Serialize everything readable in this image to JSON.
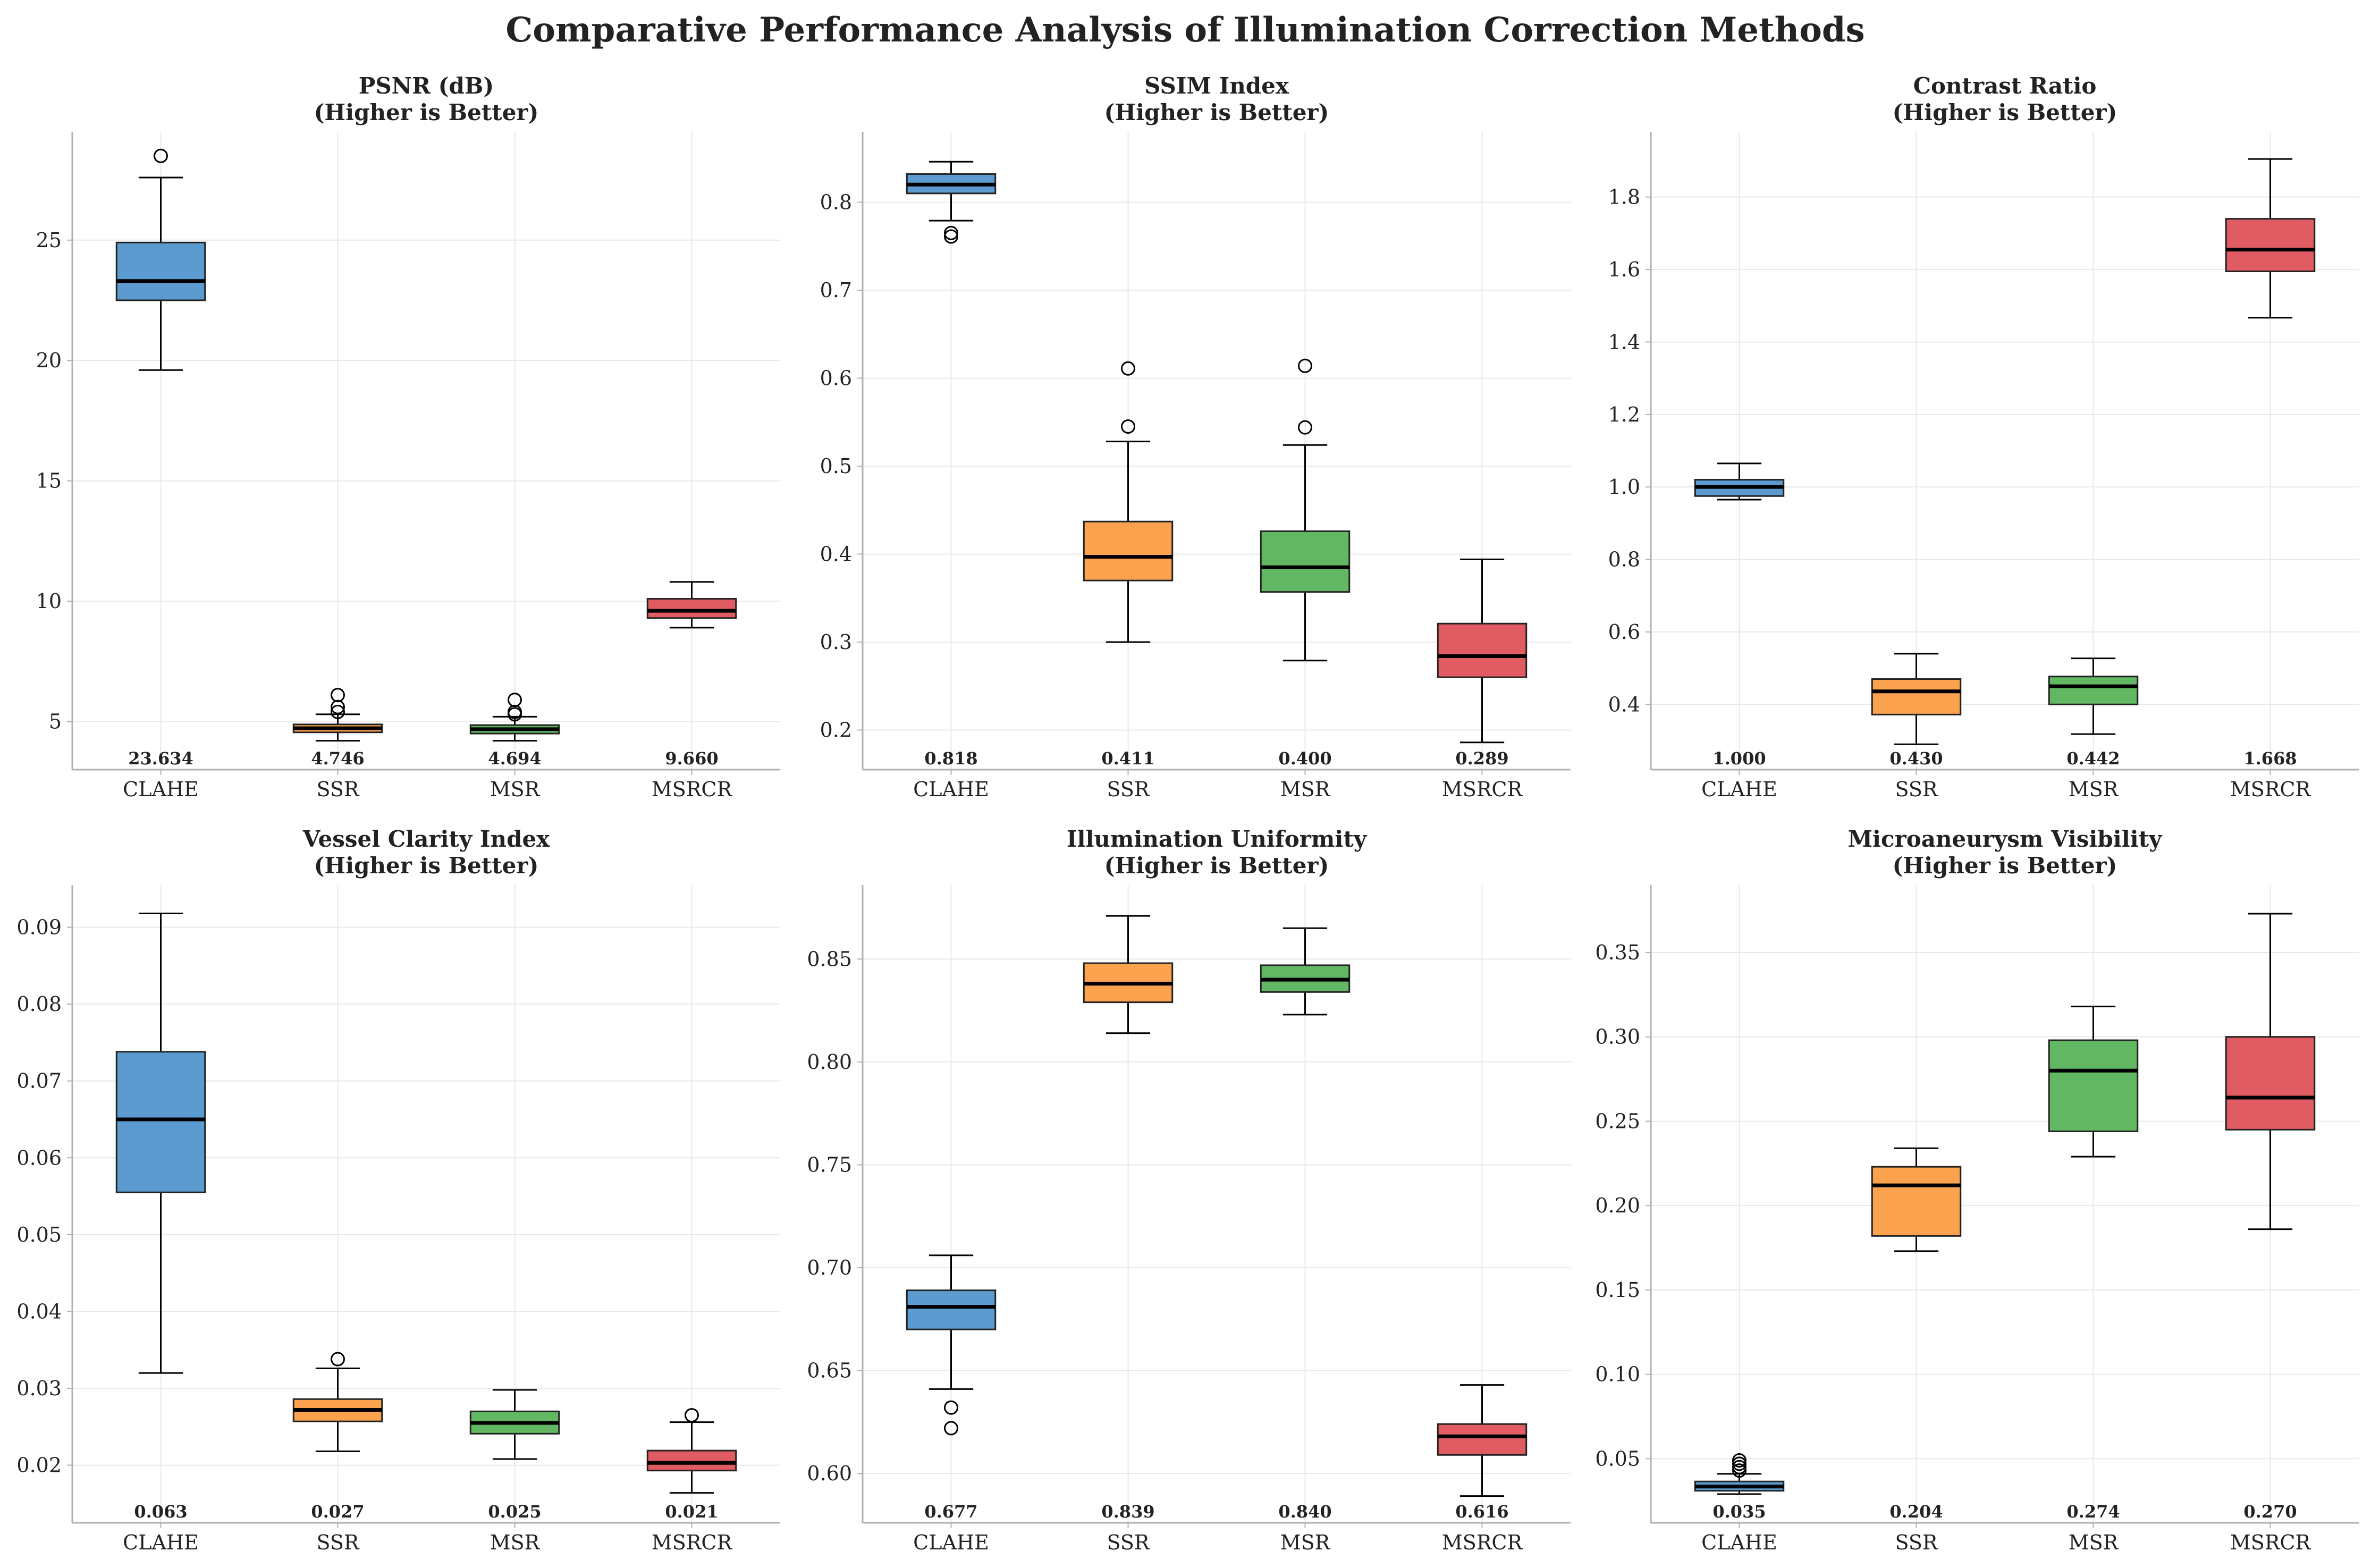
{
  "suptitle": "Comparative Performance Analysis of Illumination Correction Methods",
  "colors": {
    "CLAHE": "#5b9bd0",
    "SSR": "#fba24e",
    "MSR": "#62b862",
    "MSRCR": "#e05c62",
    "grid": "#e8e8e8",
    "axis": "#b0b0b0"
  },
  "chart_data": [
    {
      "type": "box",
      "title": "PSNR (dB)",
      "subtitle": "(Higher is Better)",
      "categories": [
        "CLAHE",
        "SSR",
        "MSR",
        "MSRCR"
      ],
      "ylim": [
        3.0,
        29.5
      ],
      "yticks": [
        5,
        10,
        15,
        20,
        25
      ],
      "ytick_labels": [
        "5",
        "10",
        "15",
        "20",
        "25"
      ],
      "grid": true,
      "series": [
        {
          "category": "CLAHE",
          "q1": 22.5,
          "median": 23.3,
          "q3": 24.9,
          "whisker_low": 19.6,
          "whisker_high": 27.6,
          "outliers": [
            28.5
          ],
          "mean_label": "23.634"
        },
        {
          "category": "SSR",
          "q1": 4.55,
          "median": 4.72,
          "q3": 4.88,
          "whisker_low": 4.2,
          "whisker_high": 5.3,
          "outliers": [
            5.4,
            5.6,
            6.1
          ],
          "mean_label": "4.746"
        },
        {
          "category": "MSR",
          "q1": 4.5,
          "median": 4.68,
          "q3": 4.85,
          "whisker_low": 4.2,
          "whisker_high": 5.2,
          "outliers": [
            5.3,
            5.4,
            5.9
          ],
          "mean_label": "4.694"
        },
        {
          "category": "MSRCR",
          "q1": 9.3,
          "median": 9.6,
          "q3": 10.1,
          "whisker_low": 8.9,
          "whisker_high": 10.8,
          "outliers": [],
          "mean_label": "9.660"
        }
      ]
    },
    {
      "type": "box",
      "title": "SSIM Index",
      "subtitle": "(Higher is Better)",
      "categories": [
        "CLAHE",
        "SSR",
        "MSR",
        "MSRCR"
      ],
      "ylim": [
        0.155,
        0.88
      ],
      "yticks": [
        0.2,
        0.3,
        0.4,
        0.5,
        0.6,
        0.7,
        0.8
      ],
      "ytick_labels": [
        "0.2",
        "0.3",
        "0.4",
        "0.5",
        "0.6",
        "0.7",
        "0.8"
      ],
      "grid": true,
      "series": [
        {
          "category": "CLAHE",
          "q1": 0.81,
          "median": 0.82,
          "q3": 0.832,
          "whisker_low": 0.779,
          "whisker_high": 0.846,
          "outliers": [
            0.765,
            0.761
          ],
          "mean_label": "0.818"
        },
        {
          "category": "SSR",
          "q1": 0.37,
          "median": 0.397,
          "q3": 0.437,
          "whisker_low": 0.3,
          "whisker_high": 0.528,
          "outliers": [
            0.545,
            0.611
          ],
          "mean_label": "0.411"
        },
        {
          "category": "MSR",
          "q1": 0.357,
          "median": 0.385,
          "q3": 0.426,
          "whisker_low": 0.279,
          "whisker_high": 0.524,
          "outliers": [
            0.544,
            0.614
          ],
          "mean_label": "0.400"
        },
        {
          "category": "MSRCR",
          "q1": 0.26,
          "median": 0.284,
          "q3": 0.321,
          "whisker_low": 0.186,
          "whisker_high": 0.394,
          "outliers": [],
          "mean_label": "0.289"
        }
      ]
    },
    {
      "type": "box",
      "title": "Contrast Ratio",
      "subtitle": "(Higher is Better)",
      "categories": [
        "CLAHE",
        "SSR",
        "MSR",
        "MSRCR"
      ],
      "ylim": [
        0.22,
        1.98
      ],
      "yticks": [
        0.4,
        0.6,
        0.8,
        1.0,
        1.2,
        1.4,
        1.6,
        1.8
      ],
      "ytick_labels": [
        "0.4",
        "0.6",
        "0.8",
        "1.0",
        "1.2",
        "1.4",
        "1.6",
        "1.8"
      ],
      "grid": true,
      "series": [
        {
          "category": "CLAHE",
          "q1": 0.975,
          "median": 1.0,
          "q3": 1.02,
          "whisker_low": 0.965,
          "whisker_high": 1.065,
          "outliers": [],
          "mean_label": "1.000"
        },
        {
          "category": "SSR",
          "q1": 0.372,
          "median": 0.436,
          "q3": 0.47,
          "whisker_low": 0.29,
          "whisker_high": 0.54,
          "outliers": [],
          "mean_label": "0.430"
        },
        {
          "category": "MSR",
          "q1": 0.4,
          "median": 0.45,
          "q3": 0.477,
          "whisker_low": 0.318,
          "whisker_high": 0.527,
          "outliers": [],
          "mean_label": "0.442"
        },
        {
          "category": "MSRCR",
          "q1": 1.595,
          "median": 1.655,
          "q3": 1.74,
          "whisker_low": 1.467,
          "whisker_high": 1.905,
          "outliers": [],
          "mean_label": "1.668"
        }
      ]
    },
    {
      "type": "box",
      "title": "Vessel Clarity Index",
      "subtitle": "(Higher is Better)",
      "categories": [
        "CLAHE",
        "SSR",
        "MSR",
        "MSRCR"
      ],
      "ylim": [
        0.0125,
        0.0955
      ],
      "yticks": [
        0.02,
        0.03,
        0.04,
        0.05,
        0.06,
        0.07,
        0.08,
        0.09
      ],
      "ytick_labels": [
        "0.02",
        "0.03",
        "0.04",
        "0.05",
        "0.06",
        "0.07",
        "0.08",
        "0.09"
      ],
      "grid": true,
      "series": [
        {
          "category": "CLAHE",
          "q1": 0.0555,
          "median": 0.065,
          "q3": 0.0738,
          "whisker_low": 0.032,
          "whisker_high": 0.0918,
          "outliers": [],
          "mean_label": "0.063"
        },
        {
          "category": "SSR",
          "q1": 0.0257,
          "median": 0.0272,
          "q3": 0.0286,
          "whisker_low": 0.0218,
          "whisker_high": 0.0326,
          "outliers": [
            0.0338
          ],
          "mean_label": "0.027"
        },
        {
          "category": "MSR",
          "q1": 0.0241,
          "median": 0.0255,
          "q3": 0.027,
          "whisker_low": 0.0208,
          "whisker_high": 0.0298,
          "outliers": [],
          "mean_label": "0.025"
        },
        {
          "category": "MSRCR",
          "q1": 0.0193,
          "median": 0.0203,
          "q3": 0.0219,
          "whisker_low": 0.0164,
          "whisker_high": 0.0256,
          "outliers": [
            0.0265
          ],
          "mean_label": "0.021"
        }
      ]
    },
    {
      "type": "box",
      "title": "Illumination Uniformity",
      "subtitle": "(Higher is Better)",
      "categories": [
        "CLAHE",
        "SSR",
        "MSR",
        "MSRCR"
      ],
      "ylim": [
        0.576,
        0.886
      ],
      "yticks": [
        0.6,
        0.65,
        0.7,
        0.75,
        0.8,
        0.85
      ],
      "ytick_labels": [
        "0.60",
        "0.65",
        "0.70",
        "0.75",
        "0.80",
        "0.85"
      ],
      "grid": true,
      "series": [
        {
          "category": "CLAHE",
          "q1": 0.67,
          "median": 0.681,
          "q3": 0.689,
          "whisker_low": 0.641,
          "whisker_high": 0.706,
          "outliers": [
            0.632,
            0.622
          ],
          "mean_label": "0.677"
        },
        {
          "category": "SSR",
          "q1": 0.829,
          "median": 0.838,
          "q3": 0.848,
          "whisker_low": 0.814,
          "whisker_high": 0.871,
          "outliers": [],
          "mean_label": "0.839"
        },
        {
          "category": "MSR",
          "q1": 0.834,
          "median": 0.84,
          "q3": 0.847,
          "whisker_low": 0.823,
          "whisker_high": 0.865,
          "outliers": [],
          "mean_label": "0.840"
        },
        {
          "category": "MSRCR",
          "q1": 0.609,
          "median": 0.618,
          "q3": 0.624,
          "whisker_low": 0.589,
          "whisker_high": 0.643,
          "outliers": [],
          "mean_label": "0.616"
        }
      ]
    },
    {
      "type": "box",
      "title": "Microaneurysm Visibility",
      "subtitle": "(Higher is Better)",
      "categories": [
        "CLAHE",
        "SSR",
        "MSR",
        "MSRCR"
      ],
      "ylim": [
        0.012,
        0.39
      ],
      "yticks": [
        0.05,
        0.1,
        0.15,
        0.2,
        0.25,
        0.3,
        0.35
      ],
      "ytick_labels": [
        "0.05",
        "0.10",
        "0.15",
        "0.20",
        "0.25",
        "0.30",
        "0.35"
      ],
      "grid": true,
      "series": [
        {
          "category": "CLAHE",
          "q1": 0.031,
          "median": 0.0335,
          "q3": 0.0365,
          "whisker_low": 0.029,
          "whisker_high": 0.041,
          "outliers": [
            0.043,
            0.045,
            0.047,
            0.049
          ],
          "mean_label": "0.035"
        },
        {
          "category": "SSR",
          "q1": 0.182,
          "median": 0.212,
          "q3": 0.223,
          "whisker_low": 0.173,
          "whisker_high": 0.234,
          "outliers": [],
          "mean_label": "0.204"
        },
        {
          "category": "MSR",
          "q1": 0.244,
          "median": 0.28,
          "q3": 0.298,
          "whisker_low": 0.229,
          "whisker_high": 0.318,
          "outliers": [],
          "mean_label": "0.274"
        },
        {
          "category": "MSRCR",
          "q1": 0.245,
          "median": 0.264,
          "q3": 0.3,
          "whisker_low": 0.186,
          "whisker_high": 0.373,
          "outliers": [],
          "mean_label": "0.270"
        }
      ]
    }
  ]
}
